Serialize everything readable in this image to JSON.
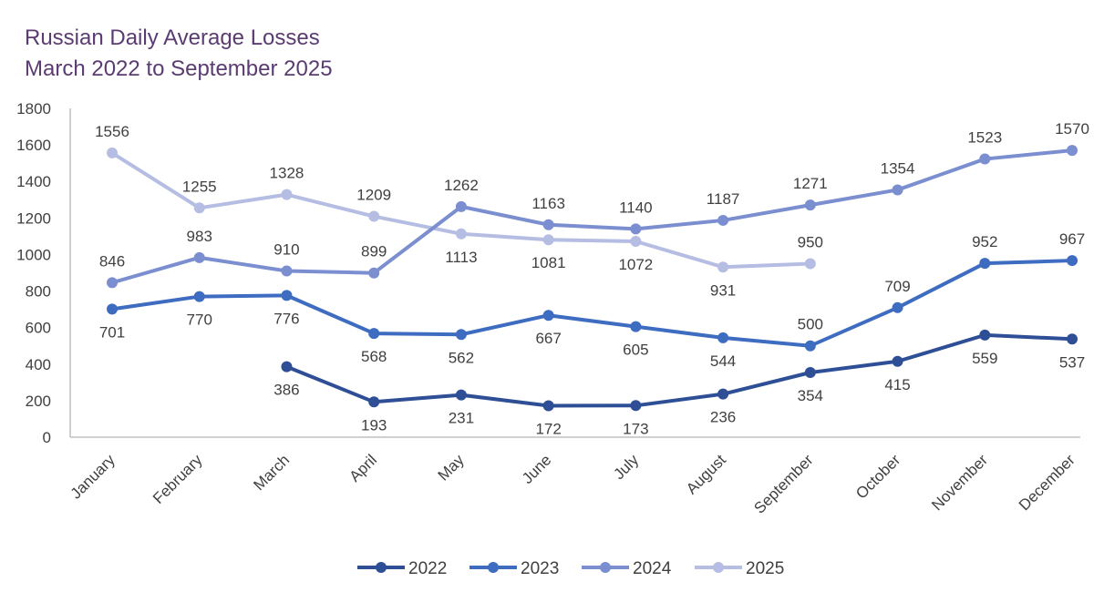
{
  "chart_data": {
    "type": "line",
    "title": "Russian Daily Average Losses",
    "subtitle": "March 2022 to September 2025",
    "xlabel": "",
    "ylabel": "",
    "categories": [
      "January",
      "February",
      "March",
      "April",
      "May",
      "June",
      "July",
      "August",
      "September",
      "October",
      "November",
      "December"
    ],
    "ylim": [
      0,
      1800
    ],
    "yticks": [
      0,
      200,
      400,
      600,
      800,
      1000,
      1200,
      1400,
      1600,
      1800
    ],
    "grid": false,
    "legend": "bottom",
    "series": [
      {
        "name": "2022",
        "color": "#2e4f96",
        "values": [
          null,
          null,
          386,
          193,
          231,
          172,
          173,
          236,
          354,
          415,
          559,
          537
        ]
      },
      {
        "name": "2023",
        "color": "#3d6cc0",
        "values": [
          701,
          770,
          776,
          568,
          562,
          667,
          605,
          544,
          500,
          709,
          952,
          967
        ]
      },
      {
        "name": "2024",
        "color": "#7a8ed0",
        "values": [
          846,
          983,
          910,
          899,
          1262,
          1163,
          1140,
          1187,
          1271,
          1354,
          1523,
          1570
        ]
      },
      {
        "name": "2025",
        "color": "#b5bde3",
        "values": [
          1556,
          1255,
          1328,
          1209,
          1113,
          1081,
          1072,
          931,
          950,
          null,
          null,
          null
        ]
      }
    ]
  }
}
